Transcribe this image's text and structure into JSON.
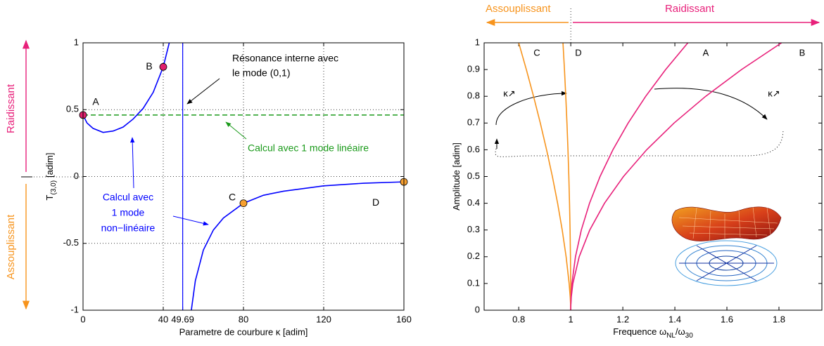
{
  "chart_data": [
    {
      "type": "line",
      "xlabel": "Parametre de courbure κ [adim]",
      "ylabel": "T",
      "ylabel_sub": "(3,0)",
      "ylabel_unit": "[adim]",
      "xlim": [
        0,
        160
      ],
      "xticks": [
        0,
        40,
        49.69,
        80,
        120,
        160
      ],
      "ylim": [
        -1,
        1
      ],
      "yticks": [
        -1,
        -0.5,
        0,
        0.5,
        1
      ],
      "grid": true,
      "series": [
        {
          "label_lines": [
            "Calcul avec 1 mode linéaire"
          ],
          "color": "#1a9a1a",
          "dashed": true,
          "x": [
            0,
            160
          ],
          "values": [
            0.46,
            0.46
          ]
        },
        {
          "label_lines": [
            "Calcul avec",
            "1 mode",
            "non−linéaire"
          ],
          "color": "#0000ff",
          "dashed": false,
          "x": [
            0,
            2,
            5,
            10,
            15,
            20,
            25,
            30,
            35,
            40,
            41,
            42,
            43,
            49.69,
            54,
            56,
            60,
            65,
            70,
            80,
            90,
            100,
            120,
            140,
            160
          ],
          "values": [
            0.46,
            0.4,
            0.36,
            0.33,
            0.34,
            0.37,
            0.43,
            0.51,
            0.63,
            0.82,
            0.88,
            0.94,
            1.0,
            null,
            -1,
            -0.78,
            -0.55,
            -0.4,
            -0.31,
            -0.2,
            -0.14,
            -0.11,
            -0.07,
            -0.05,
            -0.04
          ]
        }
      ],
      "vlines": [
        {
          "x": 49.69,
          "color": "#0000ff"
        }
      ],
      "points": [
        {
          "label": "A",
          "x": 0,
          "y": 0.46,
          "color": "#e0206e"
        },
        {
          "label": "B",
          "x": 40,
          "y": 0.82,
          "color": "#e0206e"
        },
        {
          "label": "C",
          "x": 80,
          "y": -0.2,
          "color": "#f7a030"
        },
        {
          "label": "D",
          "x": 160,
          "y": -0.04,
          "color": "#f7a030"
        }
      ],
      "annotation": [
        "Résonance interne avec",
        "le mode (0,1)"
      ],
      "regions": [
        {
          "text": "Raidissant",
          "color": "#e8207a"
        },
        {
          "text": "Assouplissant",
          "color": "#f7941d"
        }
      ]
    },
    {
      "type": "line",
      "xlabel_parts": [
        {
          "text": "Frequence ω",
          "sub": false
        },
        {
          "text": "NL",
          "sub": true
        },
        {
          "text": "/ω",
          "sub": false
        },
        {
          "text": "30",
          "sub": true
        }
      ],
      "ylabel": "Amplitude [adim]",
      "xlim": [
        0.667,
        1.965
      ],
      "xticks": [
        0.8,
        1,
        1.2,
        1.4,
        1.6,
        1.8
      ],
      "ylim": [
        0,
        1
      ],
      "yticks": [
        0,
        0.1,
        0.2,
        0.3,
        0.4,
        0.5,
        0.6,
        0.7,
        0.8,
        0.9,
        1
      ],
      "grid": false,
      "divider": 1,
      "regions": [
        {
          "text": "Assouplissant",
          "color": "#f7941d"
        },
        {
          "text": "Raidissant",
          "color": "#e8207a"
        }
      ],
      "kappa_labels": [
        "κ↗",
        "κ↗"
      ],
      "series": [
        {
          "name": "C",
          "color": "#f7941d",
          "x": [
            1,
            0.9994,
            0.9978,
            0.9937,
            0.9821,
            0.9671,
            0.9494,
            0.9293,
            0.907,
            0.8829,
            0.8569,
            0.8292,
            0.8
          ],
          "values": [
            0,
            0.02,
            0.05,
            0.1,
            0.2,
            0.3,
            0.4,
            0.5,
            0.6,
            0.7,
            0.8,
            0.9,
            1
          ]
        },
        {
          "name": "D",
          "color": "#f7941d",
          "x": [
            1,
            1,
            0.9999,
            0.9997,
            0.9988,
            0.9973,
            0.9952,
            0.9925,
            0.9892,
            0.9853,
            0.9808,
            0.9757,
            0.97
          ],
          "values": [
            0,
            0.02,
            0.05,
            0.1,
            0.2,
            0.3,
            0.4,
            0.5,
            0.6,
            0.7,
            0.8,
            0.9,
            1
          ]
        },
        {
          "name": "A",
          "color": "#e8207a",
          "x": [
            1,
            1.0002,
            1.0011,
            1.0045,
            1.018,
            1.0405,
            1.072,
            1.1125,
            1.162,
            1.2205,
            1.288,
            1.3645,
            1.45
          ],
          "values": [
            0,
            0.02,
            0.05,
            0.1,
            0.2,
            0.3,
            0.4,
            0.5,
            0.6,
            0.7,
            0.8,
            0.9,
            1
          ]
        },
        {
          "name": "B",
          "color": "#e8207a",
          "x": [
            1,
            1.0003,
            1.002,
            1.0081,
            1.0324,
            1.0729,
            1.1296,
            1.2025,
            1.2916,
            1.3969,
            1.5184,
            1.6561,
            1.81
          ],
          "values": [
            0,
            0.02,
            0.05,
            0.1,
            0.2,
            0.3,
            0.4,
            0.5,
            0.6,
            0.7,
            0.8,
            0.9,
            1
          ]
        }
      ]
    }
  ]
}
